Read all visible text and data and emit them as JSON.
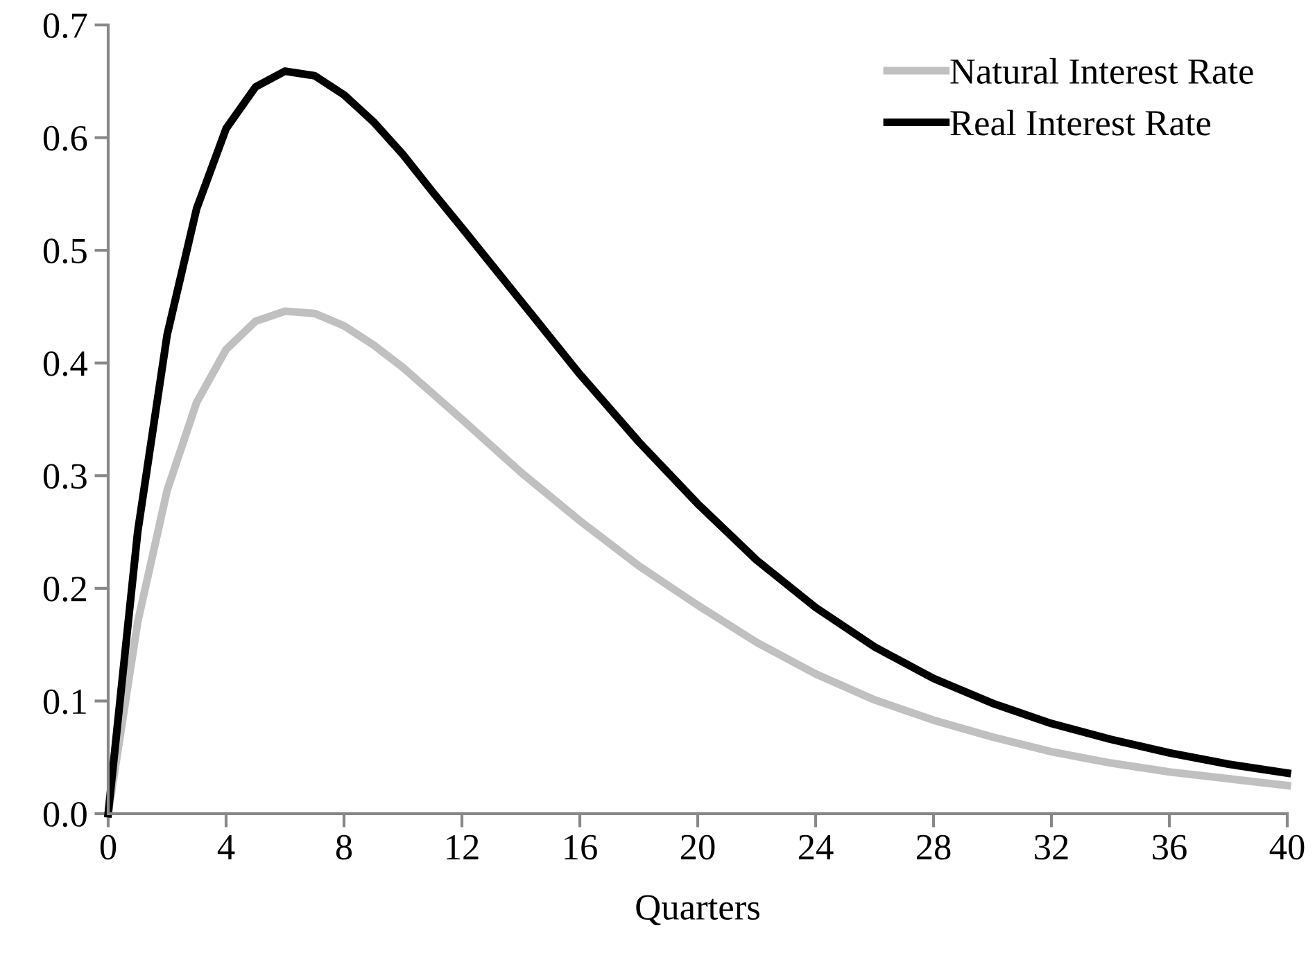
{
  "chart_data": {
    "type": "line",
    "xlabel": "Quarters",
    "x": [
      0,
      1,
      2,
      3,
      4,
      5,
      6,
      7,
      8,
      9,
      10,
      11,
      12,
      14,
      16,
      18,
      20,
      22,
      24,
      26,
      28,
      30,
      32,
      34,
      36,
      38,
      40
    ],
    "series": [
      {
        "name": "Natural Interest Rate",
        "color": "#c0c0c0",
        "values": [
          0,
          0.17,
          0.287,
          0.365,
          0.412,
          0.437,
          0.446,
          0.444,
          0.433,
          0.416,
          0.396,
          0.373,
          0.35,
          0.303,
          0.26,
          0.22,
          0.185,
          0.152,
          0.124,
          0.101,
          0.083,
          0.068,
          0.055,
          0.045,
          0.037,
          0.031,
          0.025
        ]
      },
      {
        "name": "Real Interest Rate",
        "color": "#000000",
        "values": [
          0,
          0.25,
          0.425,
          0.537,
          0.608,
          0.645,
          0.659,
          0.655,
          0.638,
          0.614,
          0.585,
          0.552,
          0.52,
          0.455,
          0.39,
          0.33,
          0.275,
          0.225,
          0.183,
          0.148,
          0.12,
          0.098,
          0.08,
          0.066,
          0.054,
          0.044,
          0.036
        ]
      }
    ],
    "xlim": [
      0,
      40
    ],
    "xticks": [
      0,
      4,
      8,
      12,
      16,
      20,
      24,
      28,
      32,
      36,
      40
    ],
    "ylim": [
      0,
      0.7
    ],
    "yticks": [
      {
        "value": 0,
        "label": "0.0"
      },
      0.1,
      0.2,
      0.3,
      0.4,
      0.5,
      0.6,
      0.7
    ],
    "grid": false,
    "legend": "top right",
    "marker": "none",
    "line_style": "solid"
  }
}
